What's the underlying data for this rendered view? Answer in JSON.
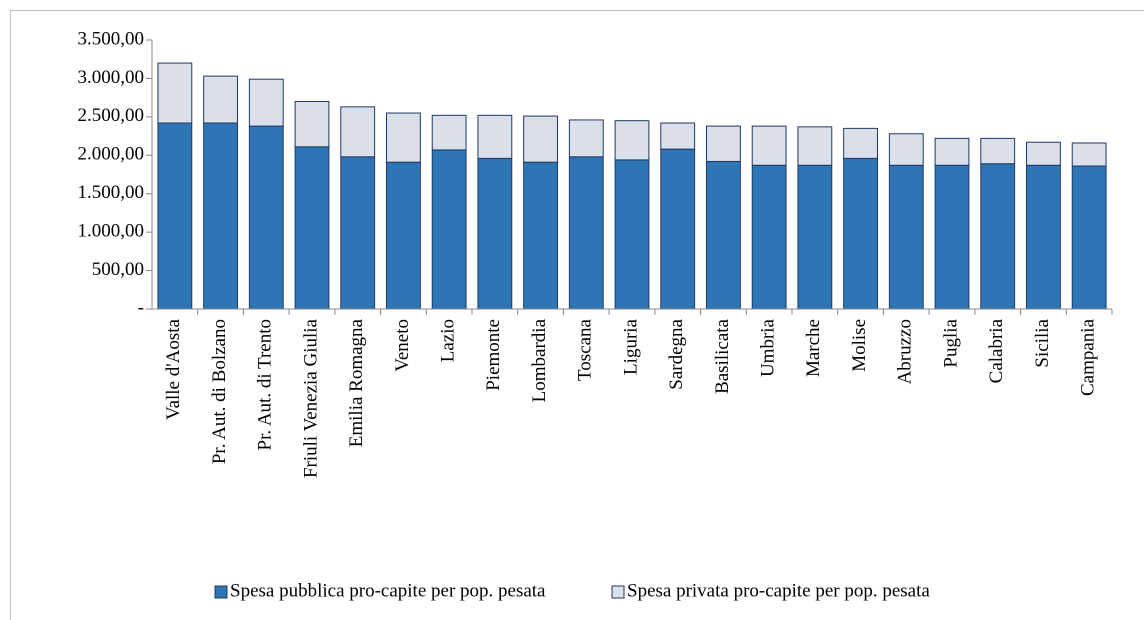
{
  "chart_data": {
    "type": "stacked-bar",
    "categories": [
      "Valle d'Aosta",
      "Pr. Aut. di Bolzano",
      "Pr. Aut. di Trento",
      "Friuli Venezia Giulia",
      "Emilia Romagna",
      "Veneto",
      "Lazio",
      "Piemonte",
      "Lombardia",
      "Toscana",
      "Liguria",
      "Sardegna",
      "Basilicata",
      "Umbria",
      "Marche",
      "Molise",
      "Abruzzo",
      "Puglia",
      "Calabria",
      "Sicilia",
      "Campania"
    ],
    "series": [
      {
        "name": "Spesa pubblica pro-capite per pop. pesata",
        "color": "#2e75b6",
        "values": [
          2420,
          2420,
          2380,
          2110,
          1980,
          1910,
          2070,
          1960,
          1910,
          1980,
          1940,
          2080,
          1920,
          1870,
          1870,
          1960,
          1870,
          1870,
          1890,
          1870,
          1860
        ]
      },
      {
        "name": "Spesa privata pro-capite per pop. pesata",
        "color": "#dadfea",
        "values": [
          780,
          610,
          610,
          590,
          650,
          640,
          450,
          560,
          600,
          480,
          510,
          340,
          460,
          510,
          500,
          390,
          410,
          350,
          330,
          300,
          300
        ]
      }
    ],
    "ylim": [
      0,
      3500
    ],
    "yticks": [
      {
        "value": 0,
        "label": "-"
      },
      {
        "value": 500,
        "label": "500,00"
      },
      {
        "value": 1000,
        "label": "1.000,00"
      },
      {
        "value": 1500,
        "label": "1.500,00"
      },
      {
        "value": 2000,
        "label": "2.000,00"
      },
      {
        "value": 2500,
        "label": "2.500,00"
      },
      {
        "value": 3000,
        "label": "3.000,00"
      },
      {
        "value": 3500,
        "label": "3.500,00"
      }
    ],
    "legend": "bottom"
  }
}
